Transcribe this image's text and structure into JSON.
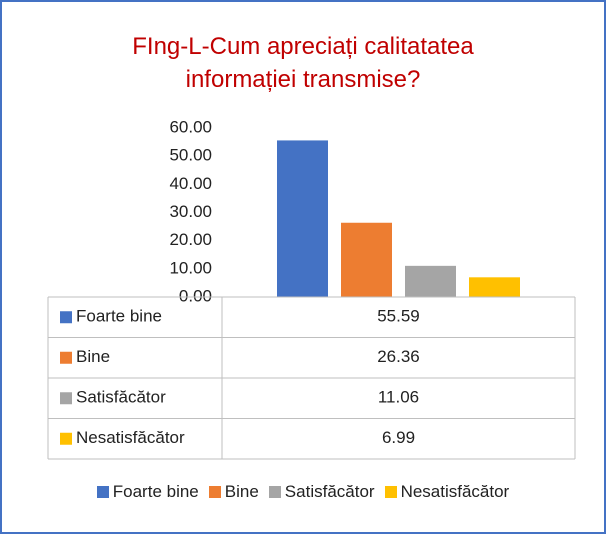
{
  "chart_data": {
    "type": "bar",
    "title": "FIng-L-Cum apreciați calitatatea informației transmise?",
    "categories": [
      null
    ],
    "series": [
      {
        "name": "Foarte bine",
        "color": "#4472c4",
        "values": [
          55.59
        ]
      },
      {
        "name": "Bine",
        "color": "#ed7d31",
        "values": [
          26.36
        ]
      },
      {
        "name": "Satisfăcător",
        "color": "#a5a5a5",
        "values": [
          11.06
        ]
      },
      {
        "name": "Nesatisfăcător",
        "color": "#ffc000",
        "values": [
          6.99
        ]
      }
    ],
    "ylim": [
      0,
      60
    ],
    "yticks": [
      {
        "value": 0,
        "label": "0.00"
      },
      {
        "value": 10,
        "label": "10.00"
      },
      {
        "value": 20,
        "label": "20.00"
      },
      {
        "value": 30,
        "label": "30.00"
      },
      {
        "value": 40,
        "label": "40.00"
      },
      {
        "value": 50,
        "label": "50.00"
      },
      {
        "value": 60,
        "label": "60.00"
      }
    ],
    "grid": false,
    "legend": "bottom",
    "data_table": true
  }
}
